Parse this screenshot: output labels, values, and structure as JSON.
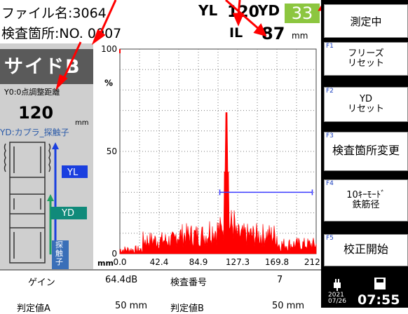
{
  "header": {
    "file_label": "ファイル名:3064",
    "location_label": "検査箇所:NO.",
    "location_value": "0007",
    "yl_label": "YL",
    "yl_value": "120",
    "yd_label": "YD",
    "yd_value": "33",
    "il_label": "IL",
    "il_value": "87",
    "il_unit": "mm",
    "yd_value_bg": "#8cc63f"
  },
  "side": {
    "title": "サイドB",
    "y0_label": "Y0:0点調整距離",
    "y0_value": "120",
    "y0_unit": "mm",
    "yd_coupler": "YD:カプラ_探触子",
    "yl_tag": "YL",
    "yd_tag": "YD",
    "probe_tag": "探触子"
  },
  "function_keys": [
    {
      "fn": "",
      "label": "測定中"
    },
    {
      "fn": "F1",
      "label": "フリーズ\nリセット"
    },
    {
      "fn": "F2",
      "label": "YD\nリセット"
    },
    {
      "fn": "F3",
      "label": "検査箇所変更"
    },
    {
      "fn": "F4",
      "label": "10ｷｰﾓｰﾄﾞ\n鉄筋径"
    },
    {
      "fn": "F5",
      "label": "校正開始"
    }
  ],
  "bottom": {
    "gain_label": "ゲイン",
    "gain_value": "64.4dB",
    "insp_label": "検査番号",
    "insp_value": "7",
    "thA_label": "判定値A",
    "thA_value": "50 mm",
    "thB_label": "判定値B",
    "thB_value": "50 mm",
    "date_year": "2021",
    "date_md": "07/26",
    "time": "07:55"
  },
  "chart_data": {
    "type": "area",
    "ylabel": "%",
    "ylim": [
      0,
      100
    ],
    "y_ticks": [
      "100",
      "50",
      "0"
    ],
    "x_unit": "mm",
    "x_ticks": [
      "0.0",
      "42.4",
      "84.9",
      "127.3",
      "169.8",
      "212.2"
    ],
    "xlim": [
      0,
      212.2
    ],
    "gate_line": {
      "x_start": 108,
      "x_end": 208,
      "y": 30
    },
    "peak": {
      "x": 115,
      "y": 69
    },
    "colors": {
      "signal": "#ff0000",
      "gate": "#3a3aff",
      "grid": "#7a7a7a"
    }
  }
}
